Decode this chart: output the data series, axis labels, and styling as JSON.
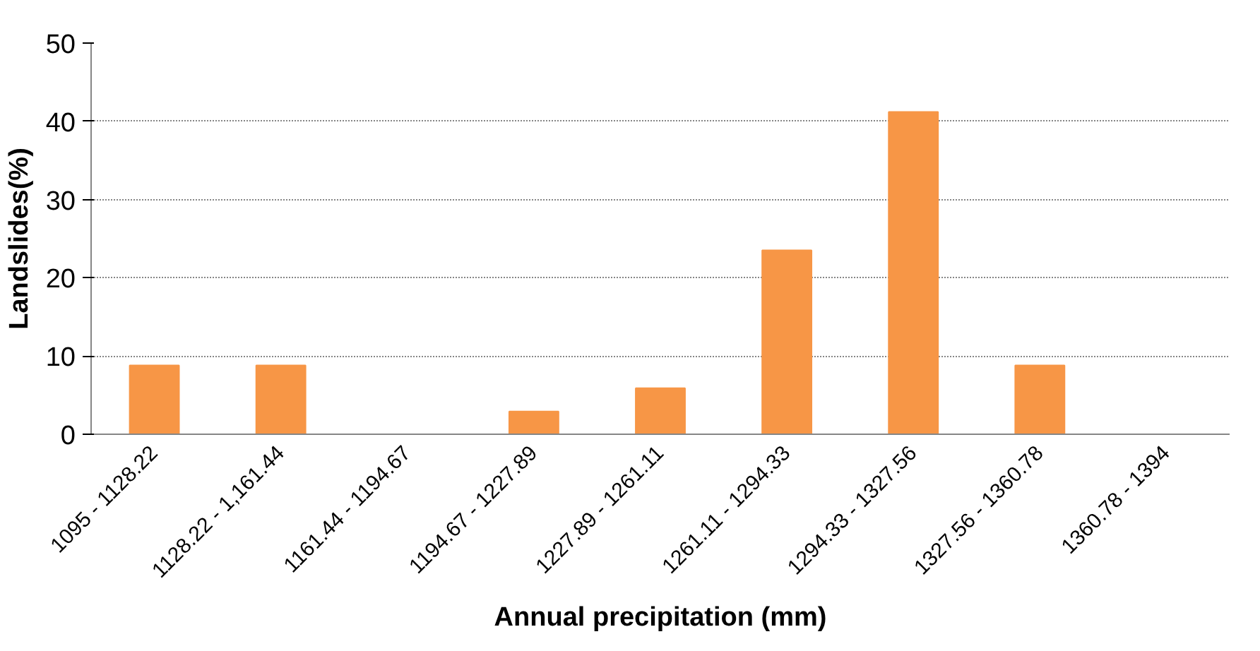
{
  "chart_data": {
    "type": "bar",
    "xlabel": "Annual precipitation (mm)",
    "ylabel": "Landslides(%)",
    "categories": [
      "1095 - 1128.22",
      "1128.22 - 1,161.44",
      "1161.44 - 1194.67",
      "1194.67 - 1227.89",
      "1227.89 - 1261.11",
      "1261.11 - 1294.33",
      "1294.33 - 1327.56",
      "1327.56 - 1360.78",
      "1360.78 - 1394"
    ],
    "values": [
      8.8,
      8.8,
      0,
      2.9,
      5.9,
      23.5,
      41.2,
      8.8,
      0
    ],
    "color": "#f79646",
    "ylim": [
      0,
      50
    ],
    "yticks": [
      0,
      10,
      20,
      30,
      40,
      50
    ],
    "grid": "y"
  }
}
